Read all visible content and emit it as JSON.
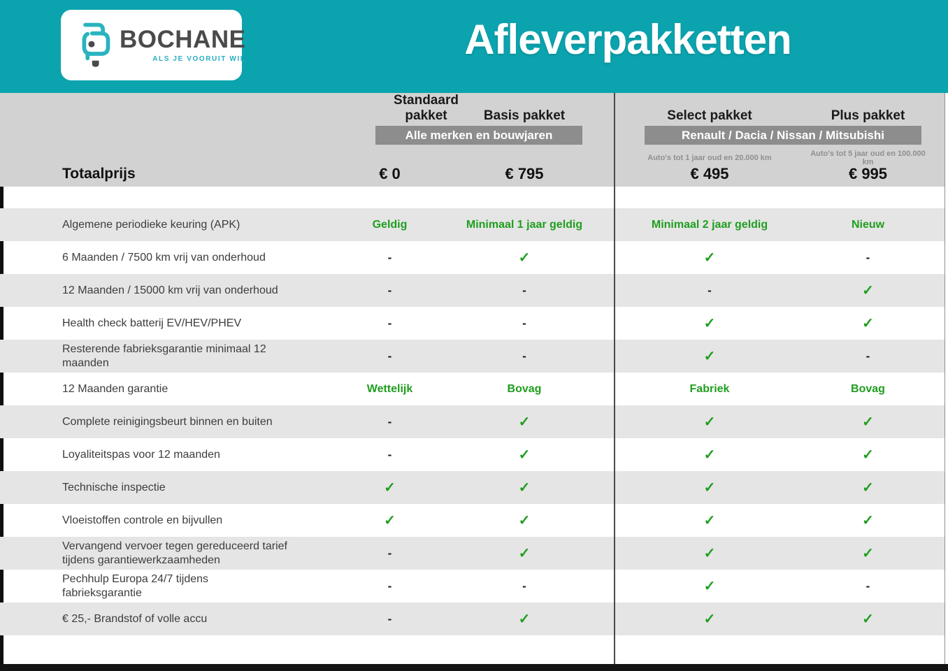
{
  "brand": {
    "name": "BOCHANE",
    "tagline": "ALS JE VOORUIT WIL"
  },
  "page_title": "Afleverpakketten",
  "pricing_header": {
    "total_label": "Totaalprijs",
    "columns": [
      {
        "id": "standaard",
        "name": "Standaard pakket",
        "price": "€ 0"
      },
      {
        "id": "basis",
        "name": "Basis pakket",
        "price": "€ 795"
      },
      {
        "id": "select",
        "name": "Select pakket",
        "price": "€ 495",
        "condition": "Auto's tot 1 jaar oud en 20.000 km"
      },
      {
        "id": "plus",
        "name": "Plus pakket",
        "price": "€ 995",
        "condition": "Auto's tot 5 jaar oud en 100.000 km"
      }
    ],
    "badges": [
      {
        "label": "Alle merken en bouwjaren",
        "span": [
          "standaard",
          "basis"
        ]
      },
      {
        "label": "Renault / Dacia / Nissan / Mitsubishi",
        "span": [
          "select",
          "plus"
        ]
      }
    ]
  },
  "legend": {
    "check": "✓",
    "dash": "-"
  },
  "features": [
    {
      "label": "Algemene periodieke keuring (APK)",
      "values": [
        "Geldig",
        "Minimaal 1 jaar geldig",
        "Minimaal 2 jaar geldig",
        "Nieuw"
      ]
    },
    {
      "label": "6 Maanden / 7500 km vrij van onderhoud",
      "values": [
        "-",
        "✓",
        "✓",
        "-"
      ]
    },
    {
      "label": "12 Maanden / 15000 km vrij van onderhoud",
      "values": [
        "-",
        "-",
        "-",
        "✓"
      ]
    },
    {
      "label": "Health check batterij EV/HEV/PHEV",
      "values": [
        "-",
        "-",
        "✓",
        "✓"
      ]
    },
    {
      "label": "Resterende fabrieksgarantie minimaal 12 maanden",
      "values": [
        "-",
        "-",
        "✓",
        "-"
      ]
    },
    {
      "label": "12 Maanden  garantie",
      "values": [
        "Wettelijk",
        "Bovag",
        "Fabriek",
        "Bovag"
      ]
    },
    {
      "label": "Complete reinigingsbeurt binnen en buiten",
      "values": [
        "-",
        "✓",
        "✓",
        "✓"
      ]
    },
    {
      "label": "Loyaliteitspas voor 12 maanden",
      "values": [
        "-",
        "✓",
        "✓",
        "✓"
      ]
    },
    {
      "label": "Technische inspectie",
      "values": [
        "✓",
        "✓",
        "✓",
        "✓"
      ]
    },
    {
      "label": "Vloeistoffen controle en bijvullen",
      "values": [
        "✓",
        "✓",
        "✓",
        "✓"
      ]
    },
    {
      "label": "Vervangend vervoer tegen gereduceerd tarief tijdens garantiewerkzaamheden",
      "values": [
        "-",
        "✓",
        "✓",
        "✓"
      ]
    },
    {
      "label": "Pechhulp Europa 24/7 tijdens fabrieksgarantie",
      "values": [
        "-",
        "-",
        "✓",
        "-"
      ]
    },
    {
      "label": "€ 25,- Brandstof of  volle accu",
      "values": [
        "-",
        "✓",
        "✓",
        "✓"
      ]
    }
  ],
  "colors": {
    "teal": "#0ba3ae",
    "band_gray": "#d2d2d2",
    "row_gray": "#e5e5e5",
    "badge_gray": "#8d8d8d",
    "green": "#1f9e1f",
    "black_bar": "#141414"
  }
}
